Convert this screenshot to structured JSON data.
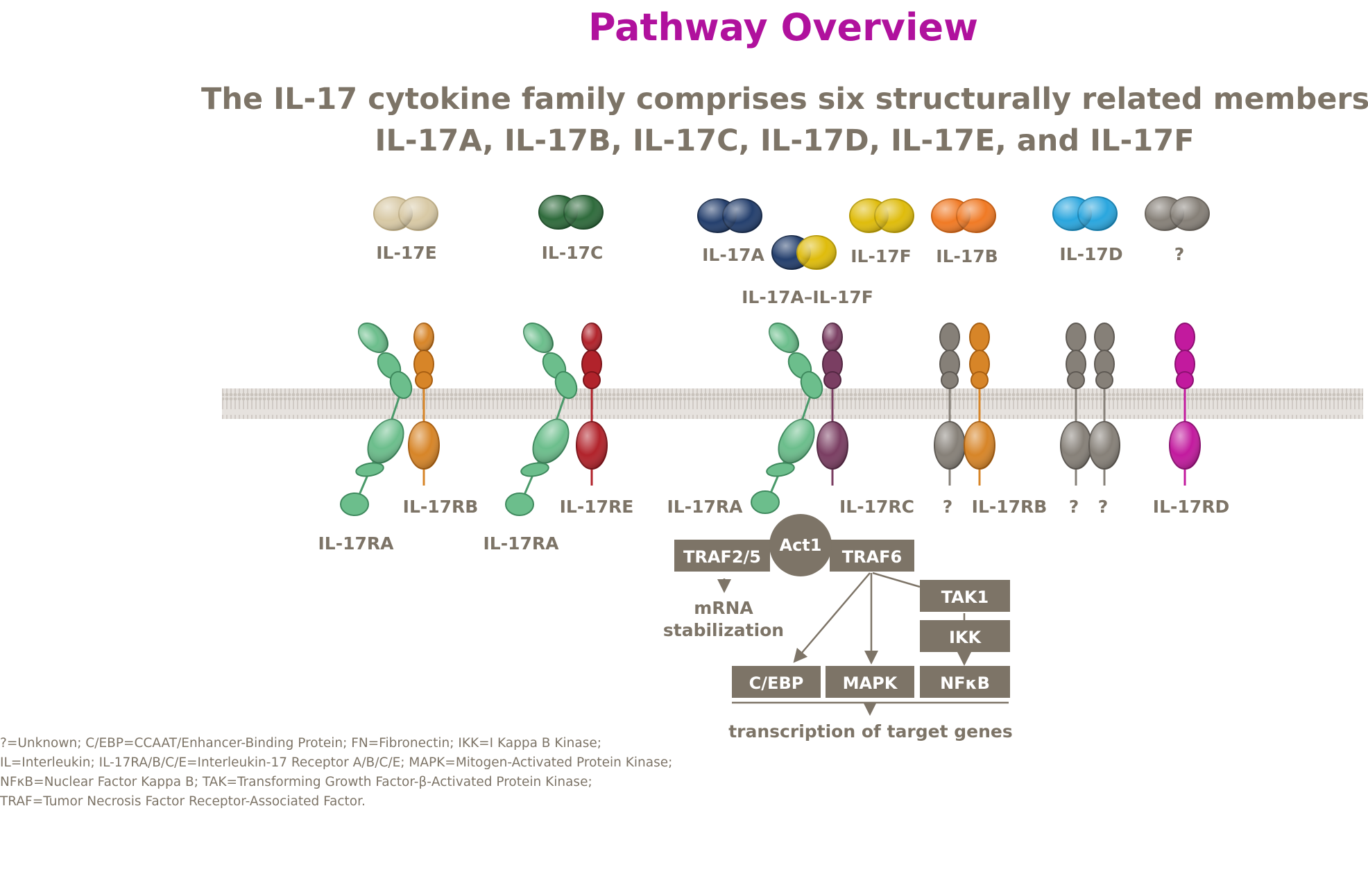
{
  "title": "Pathway Overview",
  "subtitle": {
    "line1": "The IL-17 cytokine family comprises six structurally related members:",
    "line2": "IL-17A, IL-17B, IL-17C, IL-17D, IL-17E, and IL-17F"
  },
  "colors": {
    "title": "#b0119d",
    "text": "#7d7467",
    "box": "#7d7467",
    "membrane": "#d9d4cf",
    "IL-17E": "#d8c9a5",
    "IL-17C": "#2f6b3c",
    "IL-17A": "#243f6d",
    "IL-17F": "#dfbc0c",
    "IL-17B": "#f07a25",
    "IL-17D": "#2aa6de",
    "unknown": "#868078",
    "IL-17RA": "#6cbe8c",
    "IL-17RB": "#d78528",
    "IL-17RE": "#b1232b",
    "IL-17RC": "#7a3e62",
    "IL-17RD": "#c21a9e"
  },
  "ligands": [
    {
      "label": "IL-17E",
      "color_key": "IL-17E"
    },
    {
      "label": "IL-17C",
      "color_key": "IL-17C"
    },
    {
      "label": "IL-17A",
      "color_key": "IL-17A"
    },
    {
      "label": "IL-17A–IL-17F",
      "color_key": "IL-17A"
    },
    {
      "label": "IL-17F",
      "color_key": "IL-17F"
    },
    {
      "label": "IL-17B",
      "color_key": "IL-17B"
    },
    {
      "label": "IL-17D",
      "color_key": "IL-17D"
    },
    {
      "label": "?",
      "color_key": "unknown"
    }
  ],
  "receptors": [
    {
      "label": "IL-17RA"
    },
    {
      "label": "IL-17RB"
    },
    {
      "label": "IL-17RA"
    },
    {
      "label": "IL-17RE"
    },
    {
      "label": "IL-17RA"
    },
    {
      "label": "IL-17RC"
    },
    {
      "label": "?"
    },
    {
      "label": "IL-17RB"
    },
    {
      "label": "?"
    },
    {
      "label": "?"
    },
    {
      "label": "IL-17RD"
    }
  ],
  "signaling": {
    "act1": "Act1",
    "traf25": "TRAF2/5",
    "traf6": "TRAF6",
    "mrna1": "mRNA",
    "mrna2": "stabilization",
    "tak1": "TAK1",
    "ikk": "IKK",
    "cebp": "C/EBP",
    "mapk": "MAPK",
    "nfkb": "NFκB",
    "transcription": "transcription of target genes"
  },
  "footnotes": [
    "?=Unknown; C/EBP=CCAAT/Enhancer-Binding Protein; FN=Fibronectin; IKK=I Kappa B Kinase;",
    "IL=Interleukin; IL-17RA/B/C/E=Interleukin-17 Receptor A/B/C/E; MAPK=Mitogen-Activated Protein Kinase;",
    "NFκB=Nuclear Factor Kappa B; TAK=Transforming Growth Factor-β-Activated Protein Kinase;",
    "TRAF=Tumor Necrosis Factor Receptor-Associated Factor."
  ]
}
